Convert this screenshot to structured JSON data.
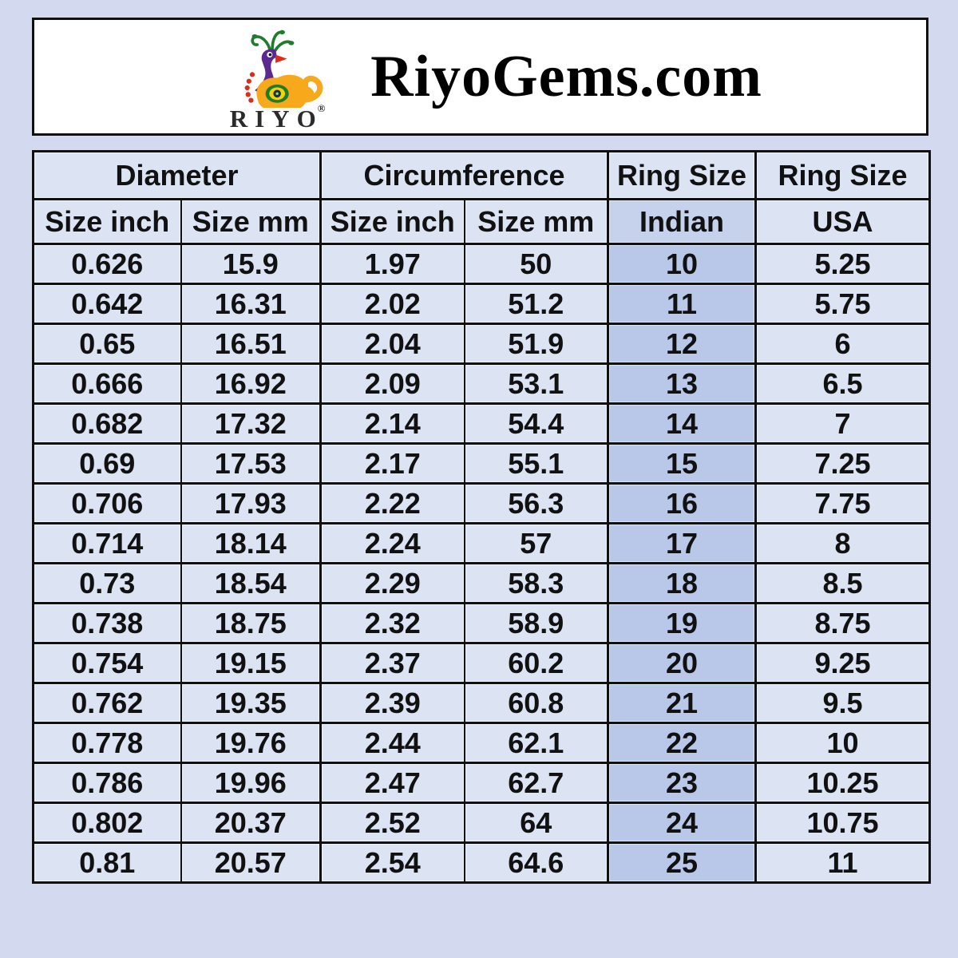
{
  "header": {
    "brand_title": "RiyoGems.com",
    "logo_text": "RIYO",
    "registered_mark": "®"
  },
  "chart_data": {
    "type": "table",
    "title": "RiyoGems.com ring size conversion chart",
    "header_rows": [
      [
        "Diameter",
        "Circumference",
        "Ring Size",
        "Ring Size"
      ],
      [
        "Size inch",
        "Size mm",
        "Size inch",
        "Size mm",
        "Indian",
        "USA"
      ]
    ],
    "rows": [
      [
        "0.626",
        "15.9",
        "1.97",
        "50",
        "10",
        "5.25"
      ],
      [
        "0.642",
        "16.31",
        "2.02",
        "51.2",
        "11",
        "5.75"
      ],
      [
        "0.65",
        "16.51",
        "2.04",
        "51.9",
        "12",
        "6"
      ],
      [
        "0.666",
        "16.92",
        "2.09",
        "53.1",
        "13",
        "6.5"
      ],
      [
        "0.682",
        "17.32",
        "2.14",
        "54.4",
        "14",
        "7"
      ],
      [
        "0.69",
        "17.53",
        "2.17",
        "55.1",
        "15",
        "7.25"
      ],
      [
        "0.706",
        "17.93",
        "2.22",
        "56.3",
        "16",
        "7.75"
      ],
      [
        "0.714",
        "18.14",
        "2.24",
        "57",
        "17",
        "8"
      ],
      [
        "0.73",
        "18.54",
        "2.29",
        "58.3",
        "18",
        "8.5"
      ],
      [
        "0.738",
        "18.75",
        "2.32",
        "58.9",
        "19",
        "8.75"
      ],
      [
        "0.754",
        "19.15",
        "2.37",
        "60.2",
        "20",
        "9.25"
      ],
      [
        "0.762",
        "19.35",
        "2.39",
        "60.8",
        "21",
        "9.5"
      ],
      [
        "0.778",
        "19.76",
        "2.44",
        "62.1",
        "22",
        "10"
      ],
      [
        "0.786",
        "19.96",
        "2.47",
        "62.7",
        "23",
        "10.25"
      ],
      [
        "0.802",
        "20.37",
        "2.52",
        "64",
        "24",
        "10.75"
      ],
      [
        "0.81",
        "20.57",
        "2.54",
        "64.6",
        "25",
        "11"
      ]
    ],
    "highlighted_column": "Indian"
  },
  "colors": {
    "page-bg": "#d3daf0",
    "panel-bg": "#ffffff",
    "border": "#101010",
    "cell-bg": "#dce3f3",
    "indian-header-bg": "#c6d1ec",
    "indian-cell-bg": "#b9c8e9",
    "text": "#111111",
    "logo-orange": "#f7a81b",
    "logo-purple": "#5a2a91",
    "logo-green": "#1e7c2e",
    "logo-red": "#e02b1a"
  }
}
